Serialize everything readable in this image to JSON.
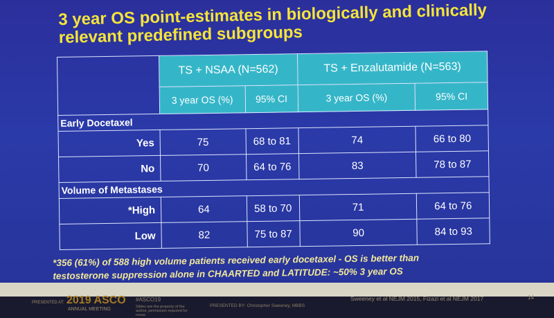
{
  "slide": {
    "title_line1": "3 year OS point-estimates in biologically and clinically",
    "title_line2": "relevant predefined subgroups",
    "groups": [
      {
        "label": "TS + NSAA (N=562)",
        "col1": "3 year OS (%)",
        "col2": "95% CI"
      },
      {
        "label": "TS + Enzalutamide (N=563)",
        "col1": "3 year OS (%)",
        "col2": "95% CI"
      }
    ],
    "sections": [
      {
        "title": "Early Docetaxel",
        "rows": [
          {
            "label": "Yes",
            "nsaa_os": "75",
            "nsaa_ci": "68 to 81",
            "enza_os": "74",
            "enza_ci": "66 to 80"
          },
          {
            "label": "No",
            "nsaa_os": "70",
            "nsaa_ci": "64 to 76",
            "enza_os": "83",
            "enza_ci": "78 to 87"
          }
        ]
      },
      {
        "title": "Volume of Metastases",
        "rows": [
          {
            "label": "*High",
            "nsaa_os": "64",
            "nsaa_ci": "58 to 70",
            "enza_os": "71",
            "enza_ci": "64 to 76"
          },
          {
            "label": "Low",
            "nsaa_os": "82",
            "nsaa_ci": "75 to 87",
            "enza_os": "90",
            "enza_ci": "84 to 93"
          }
        ]
      }
    ],
    "footnote_line1": "*356 (61%) of 588 high volume patients received early docetaxel - OS is better than",
    "footnote_line2": "testosterone suppression alone in CHAARTED and LATITUDE: ~50% 3 year OS"
  },
  "footer": {
    "presented_at": "PRESENTED AT:",
    "asco": "2019 ASCO",
    "asco_sub": "ANNUAL MEETING",
    "hashtag": "#ASCO19",
    "hashtag_note": "Slides are the property of the author, permission required for reuse.",
    "presenter": "PRESENTED BY: Christopher Sweeney, MBBS",
    "refs": "Sweeney et al NEJM 2015, Fizazi et al NEJM 2017",
    "page": "14"
  }
}
